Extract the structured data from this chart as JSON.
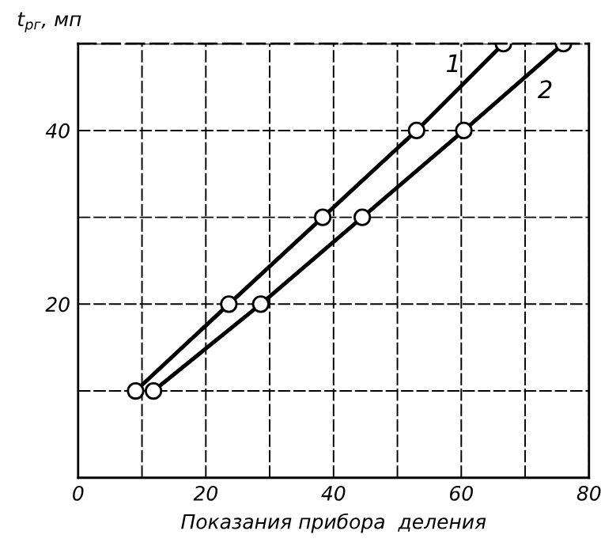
{
  "chart_data": {
    "type": "line",
    "xlabel": "Показания прибора  деления",
    "ylabel": "t$_{рг}$, мп",
    "series": [
      {
        "name": "1",
        "color": "#000000",
        "x": [
          9,
          23.6,
          38.3,
          53,
          66.6
        ],
        "values": [
          10,
          20,
          30,
          40,
          50
        ]
      },
      {
        "name": "2",
        "color": "#000000",
        "x": [
          11.8,
          28.6,
          44.5,
          60.4,
          76
        ],
        "values": [
          10,
          20,
          30,
          40,
          50
        ]
      }
    ],
    "xlim": [
      0,
      80
    ],
    "ylim": [
      0,
      50
    ],
    "xticks": [
      0,
      {
        "value": 10,
        "label": null
      },
      20,
      {
        "value": 30,
        "label": null
      },
      40,
      {
        "value": 50,
        "label": null
      },
      60,
      {
        "value": 70,
        "label": null
      },
      80
    ],
    "yticks": [
      {
        "value": 10,
        "label": null
      },
      20,
      {
        "value": 30,
        "label": null
      },
      40,
      {
        "value": 50,
        "label": null
      }
    ],
    "grid": true,
    "legend": false,
    "marker": "circle",
    "line_style": "solid"
  }
}
